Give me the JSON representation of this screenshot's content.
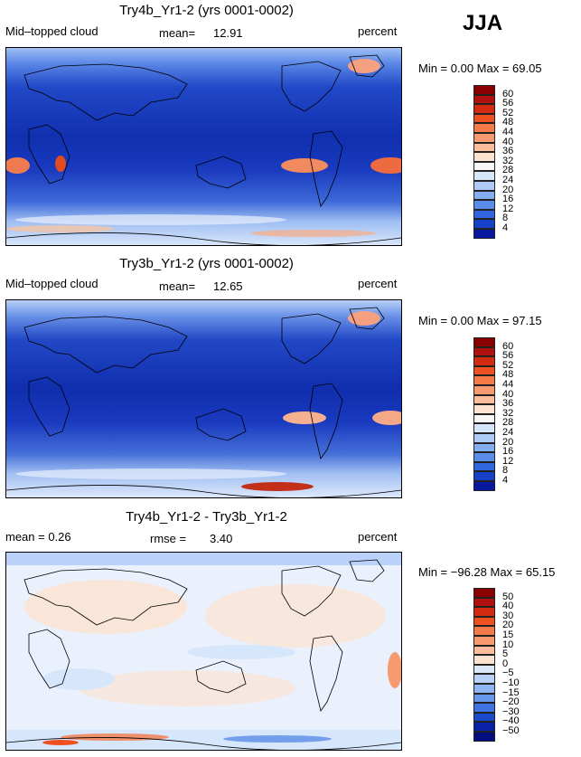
{
  "season": "JJA",
  "panels": [
    {
      "id": "p1",
      "title": "Try4b_Yr1-2 (yrs 0001-0002)",
      "left_label": "Mid–topped cloud",
      "center_label": "mean=",
      "center_value": "12.91",
      "right_label": "percent",
      "range_text": "Min =     0.00 Max =   69.05",
      "colorbar_labels": [
        "60",
        "56",
        "52",
        "48",
        "44",
        "40",
        "36",
        "32",
        "28",
        "24",
        "20",
        "16",
        "12",
        "8",
        "4"
      ],
      "colorbar_colors": [
        "#8b0000",
        "#b01010",
        "#d42a10",
        "#ee5020",
        "#f57a48",
        "#f89a70",
        "#fbbd9c",
        "#fde3cf",
        "#f8f8f8",
        "#d6e6fb",
        "#aecbf7",
        "#84aef1",
        "#5a8ce9",
        "#3066e0",
        "#1540c8",
        "#0818a0"
      ]
    },
    {
      "id": "p2",
      "title": "Try3b_Yr1-2 (yrs 0001-0002)",
      "left_label": "Mid–topped cloud",
      "center_label": "mean=",
      "center_value": "12.65",
      "right_label": "percent",
      "range_text": "Min =     0.00 Max =   97.15",
      "colorbar_labels": [
        "60",
        "56",
        "52",
        "48",
        "44",
        "40",
        "36",
        "32",
        "28",
        "24",
        "20",
        "16",
        "12",
        "8",
        "4"
      ],
      "colorbar_colors": [
        "#8b0000",
        "#b01010",
        "#d42a10",
        "#ee5020",
        "#f57a48",
        "#f89a70",
        "#fbbd9c",
        "#fde3cf",
        "#f8f8f8",
        "#d6e6fb",
        "#aecbf7",
        "#84aef1",
        "#5a8ce9",
        "#3066e0",
        "#1540c8",
        "#0818a0"
      ]
    },
    {
      "id": "p3",
      "title": "Try4b_Yr1-2 - Try3b_Yr1-2",
      "left_label": "mean =    0.26",
      "center_label": "rmse =",
      "center_value": "3.40",
      "right_label": "percent",
      "range_text": "Min = −96.28 Max =   65.15",
      "colorbar_labels": [
        "50",
        "40",
        "30",
        "20",
        "15",
        "10",
        "5",
        "0",
        "−5",
        "−10",
        "−15",
        "−20",
        "−30",
        "−40",
        "−50"
      ],
      "colorbar_colors": [
        "#8b0000",
        "#b01010",
        "#d42a10",
        "#ee5020",
        "#f57a48",
        "#f89a70",
        "#fbbd9c",
        "#fde3cf",
        "#dbe8fb",
        "#b7d1f8",
        "#8fb5f2",
        "#6898ec",
        "#3f72e2",
        "#1c48cc",
        "#0a22a8",
        "#050e80"
      ]
    }
  ],
  "chart_data": [
    {
      "type": "heatmap",
      "title": "Try4b_Yr1-2 (yrs 0001-0002)",
      "variable": "Mid-topped cloud",
      "units": "percent",
      "mean": 12.91,
      "min": 0.0,
      "max": 69.05,
      "contour_levels": [
        4,
        8,
        12,
        16,
        20,
        24,
        28,
        32,
        36,
        40,
        44,
        48,
        52,
        56,
        60
      ],
      "season": "JJA"
    },
    {
      "type": "heatmap",
      "title": "Try3b_Yr1-2 (yrs 0001-0002)",
      "variable": "Mid-topped cloud",
      "units": "percent",
      "mean": 12.65,
      "min": 0.0,
      "max": 97.15,
      "contour_levels": [
        4,
        8,
        12,
        16,
        20,
        24,
        28,
        32,
        36,
        40,
        44,
        48,
        52,
        56,
        60
      ],
      "season": "JJA"
    },
    {
      "type": "heatmap",
      "title": "Try4b_Yr1-2 - Try3b_Yr1-2",
      "units": "percent",
      "mean": 0.26,
      "rmse": 3.4,
      "min": -96.28,
      "max": 65.15,
      "contour_levels": [
        -50,
        -40,
        -30,
        -20,
        -15,
        -10,
        -5,
        0,
        5,
        10,
        15,
        20,
        30,
        40,
        50
      ],
      "season": "JJA"
    }
  ]
}
